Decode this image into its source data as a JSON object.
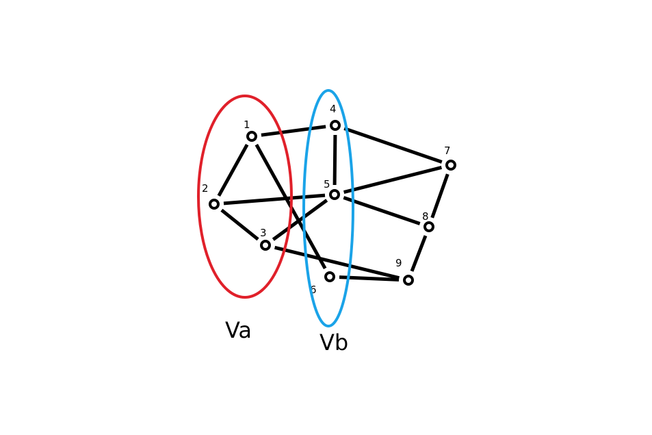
{
  "diagram": {
    "type": "bipartite-graph",
    "sets": [
      {
        "id": "Va",
        "label": "Va",
        "color": "#e0202a",
        "members": [
          "1",
          "2",
          "3"
        ]
      },
      {
        "id": "Vb",
        "label": "Vb",
        "color": "#1aa3e8",
        "members": [
          "4",
          "5",
          "6"
        ]
      }
    ],
    "nodes": [
      {
        "id": "1",
        "label": "1"
      },
      {
        "id": "2",
        "label": "2"
      },
      {
        "id": "3",
        "label": "3"
      },
      {
        "id": "4",
        "label": "4"
      },
      {
        "id": "5",
        "label": "5"
      },
      {
        "id": "6",
        "label": "6"
      },
      {
        "id": "7",
        "label": "7"
      },
      {
        "id": "8",
        "label": "8"
      },
      {
        "id": "9",
        "label": "9"
      }
    ],
    "edges": [
      [
        "1",
        "2"
      ],
      [
        "1",
        "4"
      ],
      [
        "1",
        "6"
      ],
      [
        "2",
        "3"
      ],
      [
        "2",
        "5"
      ],
      [
        "3",
        "5"
      ],
      [
        "3",
        "9"
      ],
      [
        "4",
        "5"
      ],
      [
        "4",
        "7"
      ],
      [
        "5",
        "7"
      ],
      [
        "5",
        "8"
      ],
      [
        "6",
        "9"
      ],
      [
        "7",
        "8"
      ],
      [
        "8",
        "9"
      ]
    ]
  }
}
